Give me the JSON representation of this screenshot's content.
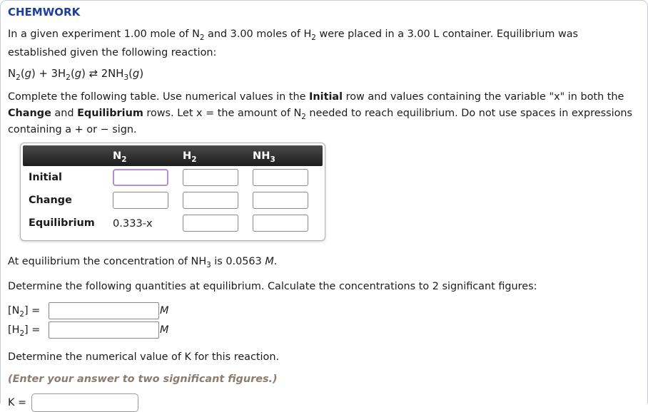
{
  "page": {
    "title": "CHEMWORK"
  },
  "intro": {
    "segments": [
      {
        "t": "In a given experiment 1.00 mole of N"
      },
      {
        "t": "2",
        "sub": true
      },
      {
        "t": " and 3.00 moles of H"
      },
      {
        "t": "2",
        "sub": true
      },
      {
        "t": " were placed in a 3.00 L container. Equilibrium was established given the following reaction:"
      }
    ]
  },
  "reaction": {
    "segments": [
      {
        "t": "N"
      },
      {
        "t": "2",
        "sub": true
      },
      {
        "t": "("
      },
      {
        "t": "g",
        "i": true
      },
      {
        "t": ") + 3H"
      },
      {
        "t": "2",
        "sub": true
      },
      {
        "t": "("
      },
      {
        "t": "g",
        "i": true
      },
      {
        "t": ") ⇄ 2NH"
      },
      {
        "t": "3",
        "sub": true
      },
      {
        "t": "("
      },
      {
        "t": "g",
        "i": true
      },
      {
        "t": ")"
      }
    ]
  },
  "instructions": {
    "segments": [
      {
        "t": "Complete the following table. Use numerical values in the "
      },
      {
        "t": "Initial",
        "b": true
      },
      {
        "t": " row and values containing the variable \"x\" in both the "
      },
      {
        "t": "Change",
        "b": true
      },
      {
        "t": " and "
      },
      {
        "t": "Equilibrium",
        "b": true
      },
      {
        "t": " rows. Let x = the amount of N"
      },
      {
        "t": "2",
        "sub": true
      },
      {
        "t": " needed to reach equilibrium. Do not use spaces in expressions containing a + or − sign."
      }
    ]
  },
  "table": {
    "columns": [
      {
        "segments": [
          {
            "t": "N"
          },
          {
            "t": "2",
            "sub": true
          }
        ]
      },
      {
        "segments": [
          {
            "t": "H"
          },
          {
            "t": "2",
            "sub": true
          }
        ]
      },
      {
        "segments": [
          {
            "t": "NH"
          },
          {
            "t": "3",
            "sub": true
          }
        ]
      }
    ],
    "rows": [
      {
        "label": "Initial",
        "cells": [
          {
            "type": "input",
            "value": "",
            "focused": true
          },
          {
            "type": "input",
            "value": ""
          },
          {
            "type": "input",
            "value": ""
          }
        ]
      },
      {
        "label": "Change",
        "cells": [
          {
            "type": "input",
            "value": ""
          },
          {
            "type": "input",
            "value": ""
          },
          {
            "type": "input",
            "value": ""
          }
        ]
      },
      {
        "label": "Equilibrium",
        "cells": [
          {
            "type": "text",
            "value": "0.333-x"
          },
          {
            "type": "input",
            "value": ""
          },
          {
            "type": "input",
            "value": ""
          }
        ]
      }
    ]
  },
  "equilibrium_note": {
    "segments": [
      {
        "t": "At equilibrium the concentration of NH"
      },
      {
        "t": "3",
        "sub": true
      },
      {
        "t": " is 0.0563 "
      },
      {
        "t": "M",
        "i": true
      },
      {
        "t": "."
      }
    ]
  },
  "determine_note": "Determine the following quantities at equilibrium. Calculate the concentrations to 2 significant figures:",
  "concentrations": [
    {
      "label_segments": [
        {
          "t": "[N"
        },
        {
          "t": "2",
          "sub": true
        },
        {
          "t": "] ="
        }
      ],
      "value": "",
      "unit": "M"
    },
    {
      "label_segments": [
        {
          "t": "[H"
        },
        {
          "t": "2",
          "sub": true
        },
        {
          "t": "] ="
        }
      ],
      "value": "",
      "unit": "M"
    }
  ],
  "k_section": {
    "prompt": "Determine the numerical value of K for this reaction.",
    "hint": "(Enter your answer to two significant figures.)",
    "label": "K =",
    "value": ""
  },
  "colors": {
    "accent_blue": "#1c3f9e",
    "focus_purple": "#b48ede",
    "hint_brown": "#8c7b6e",
    "table_header_dark": "#1d1d1d",
    "input_border": "#8a8a8a"
  }
}
